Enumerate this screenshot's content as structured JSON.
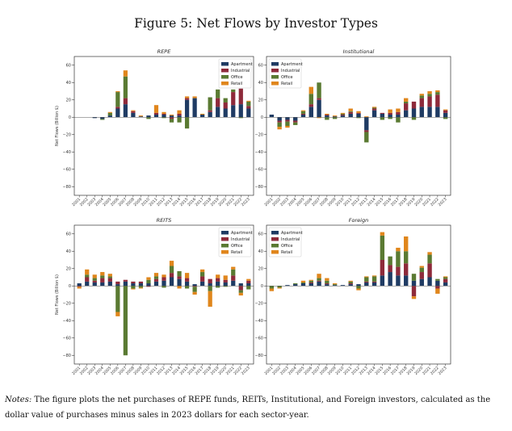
{
  "figure_title": "Figure 5: Net Flows by Investor Types",
  "notes_label": "Notes:",
  "notes_text": "The figure plots the net purchases of REPE funds, REITs, Institutional, and Foreign investors, calculated as the dollar value of purchases minus sales in 2023 dollars for each sector-year.",
  "colors": {
    "Apartment": "#1f3b63",
    "Industrial": "#8e2a3a",
    "Office": "#5a7a32",
    "Retail": "#e0861c"
  },
  "chart_data": [
    {
      "type": "bar",
      "stacked": true,
      "title": "REPE",
      "ylabel": "Net Flows (Billion $)",
      "ylim": [
        -90,
        70
      ],
      "yticks": [
        60,
        40,
        20,
        0,
        -20,
        -40,
        -60,
        -80
      ],
      "legend": "top-right",
      "categories": [
        "2001",
        "2002",
        "2003",
        "2004",
        "2005",
        "2006",
        "2007",
        "2008",
        "2009",
        "2010",
        "2011",
        "2012",
        "2013",
        "2014",
        "2015",
        "2016",
        "2017",
        "2018",
        "2019",
        "2020",
        "2021",
        "2022",
        "2023"
      ],
      "series": [
        {
          "name": "Apartment",
          "values": [
            0,
            0,
            -1,
            -2,
            2,
            10,
            15,
            5,
            1,
            2,
            3,
            3,
            2,
            2,
            20,
            22,
            3,
            6,
            12,
            10,
            14,
            15,
            10
          ]
        },
        {
          "name": "Industrial",
          "values": [
            0,
            0,
            0,
            0,
            0,
            2,
            7,
            2,
            0,
            0,
            2,
            1,
            -2,
            2,
            2,
            0,
            0,
            2,
            10,
            7,
            15,
            18,
            3
          ]
        },
        {
          "name": "Office",
          "values": [
            0,
            0,
            0,
            -1,
            3,
            17,
            25,
            0,
            0,
            -2,
            0,
            -1,
            -4,
            -6,
            -13,
            0,
            0,
            15,
            10,
            5,
            3,
            -1,
            5
          ]
        },
        {
          "name": "Retail",
          "values": [
            0,
            0,
            0,
            0,
            1,
            1,
            7,
            1,
            1,
            0,
            9,
            2,
            1,
            4,
            2,
            2,
            1,
            0,
            0,
            0,
            0,
            0,
            1
          ]
        }
      ]
    },
    {
      "type": "bar",
      "stacked": true,
      "title": "Institutional",
      "ylabel": "",
      "ylim": [
        -90,
        70
      ],
      "yticks": [
        60,
        40,
        20,
        0,
        -20,
        -40,
        -60,
        -80
      ],
      "legend": "top-left",
      "categories": [
        "2001",
        "2002",
        "2003",
        "2004",
        "2005",
        "2006",
        "2007",
        "2008",
        "2009",
        "2010",
        "2011",
        "2012",
        "2013",
        "2014",
        "2015",
        "2016",
        "2017",
        "2018",
        "2019",
        "2020",
        "2021",
        "2022",
        "2023"
      ],
      "series": [
        {
          "name": "Apartment",
          "values": [
            3,
            -4,
            -3,
            -4,
            3,
            12,
            20,
            2,
            1,
            2,
            4,
            4,
            -15,
            8,
            4,
            3,
            3,
            8,
            10,
            12,
            12,
            12,
            5
          ]
        },
        {
          "name": "Industrial",
          "values": [
            0,
            -2,
            -2,
            -2,
            1,
            3,
            2,
            1,
            0,
            1,
            2,
            1,
            -2,
            2,
            1,
            2,
            3,
            8,
            8,
            10,
            12,
            14,
            3
          ]
        },
        {
          "name": "Office",
          "values": [
            0,
            -5,
            -5,
            -3,
            3,
            12,
            18,
            -3,
            -2,
            1,
            1,
            -1,
            -12,
            1,
            -3,
            -2,
            -6,
            2,
            -3,
            3,
            3,
            3,
            -2
          ]
        },
        {
          "name": "Retail",
          "values": [
            0,
            -3,
            -2,
            0,
            1,
            8,
            -1,
            1,
            1,
            1,
            3,
            2,
            1,
            1,
            0,
            4,
            4,
            4,
            0,
            2,
            3,
            2,
            1
          ]
        }
      ]
    },
    {
      "type": "bar",
      "stacked": true,
      "title": "REITS",
      "ylabel": "Net Flows (Billion $)",
      "ylim": [
        -90,
        70
      ],
      "yticks": [
        60,
        40,
        20,
        0,
        -20,
        -40,
        -60,
        -80
      ],
      "legend": "top-right",
      "categories": [
        "2001",
        "2002",
        "2003",
        "2004",
        "2005",
        "2006",
        "2007",
        "2008",
        "2009",
        "2010",
        "2011",
        "2012",
        "2013",
        "2014",
        "2015",
        "2016",
        "2017",
        "2018",
        "2019",
        "2020",
        "2021",
        "2022",
        "2023"
      ],
      "series": [
        {
          "name": "Apartment",
          "values": [
            3,
            5,
            4,
            4,
            5,
            2,
            5,
            3,
            3,
            3,
            5,
            6,
            10,
            8,
            5,
            2,
            5,
            3,
            5,
            4,
            6,
            3,
            3
          ]
        },
        {
          "name": "Industrial",
          "values": [
            -1,
            5,
            2,
            5,
            4,
            3,
            2,
            2,
            2,
            -1,
            3,
            4,
            5,
            3,
            4,
            -1,
            6,
            5,
            4,
            3,
            6,
            -5,
            3
          ]
        },
        {
          "name": "Office",
          "values": [
            0,
            3,
            3,
            3,
            2,
            -30,
            -80,
            -3,
            -2,
            4,
            3,
            -2,
            8,
            6,
            -3,
            -6,
            5,
            -6,
            -2,
            -1,
            7,
            -3,
            -4
          ]
        },
        {
          "name": "Retail",
          "values": [
            -2,
            6,
            4,
            4,
            3,
            -5,
            0,
            -1,
            -1,
            3,
            4,
            3,
            6,
            -3,
            6,
            -3,
            3,
            -18,
            4,
            5,
            3,
            -3,
            2
          ]
        }
      ]
    },
    {
      "type": "bar",
      "stacked": true,
      "title": "Foreign",
      "ylabel": "",
      "ylim": [
        -90,
        70
      ],
      "yticks": [
        60,
        40,
        20,
        0,
        -20,
        -40,
        -60,
        -80
      ],
      "legend": "top-left",
      "categories": [
        "2001",
        "2002",
        "2003",
        "2004",
        "2005",
        "2006",
        "2007",
        "2008",
        "2009",
        "2010",
        "2011",
        "2012",
        "2013",
        "2014",
        "2015",
        "2016",
        "2017",
        "2018",
        "2019",
        "2020",
        "2021",
        "2022",
        "2023"
      ],
      "series": [
        {
          "name": "Apartment",
          "values": [
            0,
            0,
            1,
            2,
            3,
            3,
            5,
            2,
            1,
            1,
            2,
            2,
            4,
            4,
            12,
            16,
            12,
            12,
            6,
            8,
            10,
            6,
            4
          ]
        },
        {
          "name": "Industrial",
          "values": [
            0,
            0,
            0,
            0,
            0,
            1,
            1,
            1,
            0,
            0,
            1,
            0,
            1,
            1,
            18,
            8,
            10,
            14,
            -12,
            8,
            16,
            -3,
            4
          ]
        },
        {
          "name": "Office",
          "values": [
            -3,
            -2,
            0,
            1,
            1,
            2,
            3,
            3,
            1,
            0,
            2,
            -3,
            5,
            6,
            28,
            10,
            18,
            14,
            8,
            5,
            10,
            2,
            2
          ]
        },
        {
          "name": "Retail",
          "values": [
            -3,
            -1,
            0,
            0,
            2,
            1,
            5,
            3,
            1,
            0,
            1,
            -2,
            1,
            1,
            4,
            0,
            4,
            17,
            -3,
            2,
            3,
            -6,
            1
          ]
        }
      ]
    }
  ]
}
